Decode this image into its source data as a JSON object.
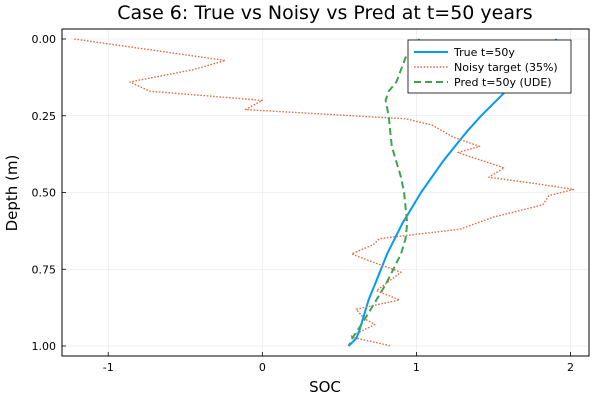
{
  "chart_data": {
    "type": "line",
    "title": "Case 6: True vs Noisy vs Pred at t=50 years",
    "xlabel": "SOC",
    "ylabel": "Depth (m)",
    "xlim": [
      -1.3,
      2.12
    ],
    "ylim": [
      0.0,
      1.0
    ],
    "y_inverted": true,
    "grid": true,
    "legend_position": "top-right",
    "x_ticks": [
      -1,
      0,
      1,
      2
    ],
    "x_tick_labels": [
      "-1",
      "0",
      "1",
      "2"
    ],
    "y_ticks": [
      0.0,
      0.25,
      0.5,
      0.75,
      1.0
    ],
    "y_tick_labels": [
      "0.00",
      "0.25",
      "0.50",
      "0.75",
      "1.00"
    ],
    "series": [
      {
        "name": "True t=50y",
        "color": "#009AFA",
        "style": "solid",
        "x": [
          1.91,
          1.82,
          1.72,
          1.62,
          1.52,
          1.42,
          1.33,
          1.25,
          1.17,
          1.1,
          1.03,
          0.97,
          0.91,
          0.86,
          0.81,
          0.77,
          0.73,
          0.69,
          0.66,
          0.63,
          0.61,
          0.58,
          0.56
        ],
        "y": [
          0.0,
          0.05,
          0.1,
          0.15,
          0.2,
          0.25,
          0.3,
          0.35,
          0.4,
          0.45,
          0.5,
          0.55,
          0.6,
          0.65,
          0.7,
          0.75,
          0.8,
          0.85,
          0.9,
          0.95,
          0.975,
          0.99,
          1.0
        ]
      },
      {
        "name": "Noisy target (35%)",
        "color": "#E26F46",
        "style": "dotted",
        "x": [
          -1.22,
          -0.24,
          -0.45,
          -0.86,
          -0.73,
          0.0,
          -0.11,
          0.93,
          1.1,
          1.24,
          1.41,
          1.27,
          1.57,
          1.47,
          1.76,
          2.02,
          1.86,
          1.82,
          1.5,
          1.28,
          0.76,
          0.72,
          0.58,
          0.68,
          0.9,
          0.74,
          0.89,
          0.61,
          0.66,
          0.73,
          0.57,
          0.84
        ],
        "y": [
          0.0,
          0.07,
          0.1,
          0.14,
          0.17,
          0.2,
          0.23,
          0.26,
          0.28,
          0.32,
          0.35,
          0.37,
          0.42,
          0.45,
          0.47,
          0.49,
          0.51,
          0.54,
          0.58,
          0.62,
          0.65,
          0.67,
          0.7,
          0.72,
          0.76,
          0.82,
          0.85,
          0.88,
          0.91,
          0.93,
          0.97,
          1.0
        ]
      },
      {
        "name": "Pred t=50y (UDE)",
        "color": "#3DA44D",
        "style": "dashed",
        "x": [
          1.02,
          0.93,
          0.9,
          0.87,
          0.82,
          0.8,
          0.82,
          0.83,
          0.84,
          0.87,
          0.9,
          0.92,
          0.93,
          0.94,
          0.93,
          0.9,
          0.85,
          0.8,
          0.74,
          0.68,
          0.63,
          0.59,
          0.56
        ],
        "y": [
          0.0,
          0.06,
          0.1,
          0.14,
          0.17,
          0.2,
          0.25,
          0.3,
          0.35,
          0.4,
          0.45,
          0.5,
          0.55,
          0.6,
          0.65,
          0.7,
          0.75,
          0.8,
          0.85,
          0.9,
          0.94,
          0.97,
          1.0
        ]
      }
    ]
  }
}
